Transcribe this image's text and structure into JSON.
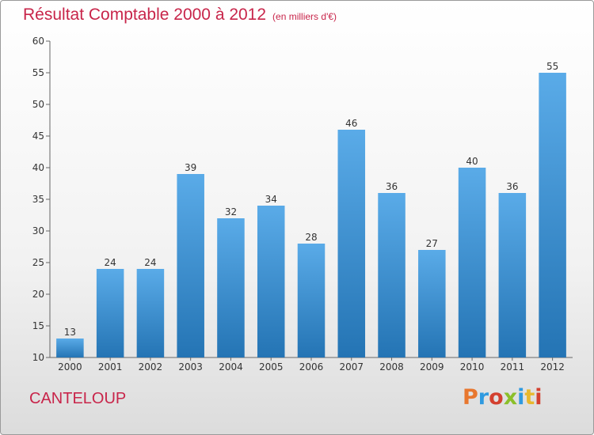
{
  "header": {
    "title": "Résultat Comptable 2000 à 2012",
    "subtitle": "(en milliers d'€)"
  },
  "footer": {
    "commune": "CANTELOUP",
    "brand": "Proxiti",
    "brand_colors": [
      "#e8772e",
      "#2f9ae0",
      "#d3402f",
      "#8bbf2a",
      "#2f9ae0",
      "#e8b82e",
      "#d3402f"
    ]
  },
  "colors": {
    "title": "#c8254a",
    "bar_top": "#5aabe8",
    "bar_bottom": "#2474b4"
  },
  "chart_data": {
    "type": "bar",
    "title": "Résultat Comptable 2000 à 2012",
    "subtitle": "(en milliers d'€)",
    "categories": [
      "2000",
      "2001",
      "2002",
      "2003",
      "2004",
      "2005",
      "2006",
      "2007",
      "2008",
      "2009",
      "2010",
      "2011",
      "2012"
    ],
    "values": [
      13,
      24,
      24,
      39,
      32,
      34,
      28,
      46,
      36,
      27,
      40,
      36,
      55
    ],
    "ylim": [
      10,
      60
    ],
    "yticks": [
      10,
      15,
      20,
      25,
      30,
      35,
      40,
      45,
      50,
      55,
      60
    ],
    "grid": false
  }
}
